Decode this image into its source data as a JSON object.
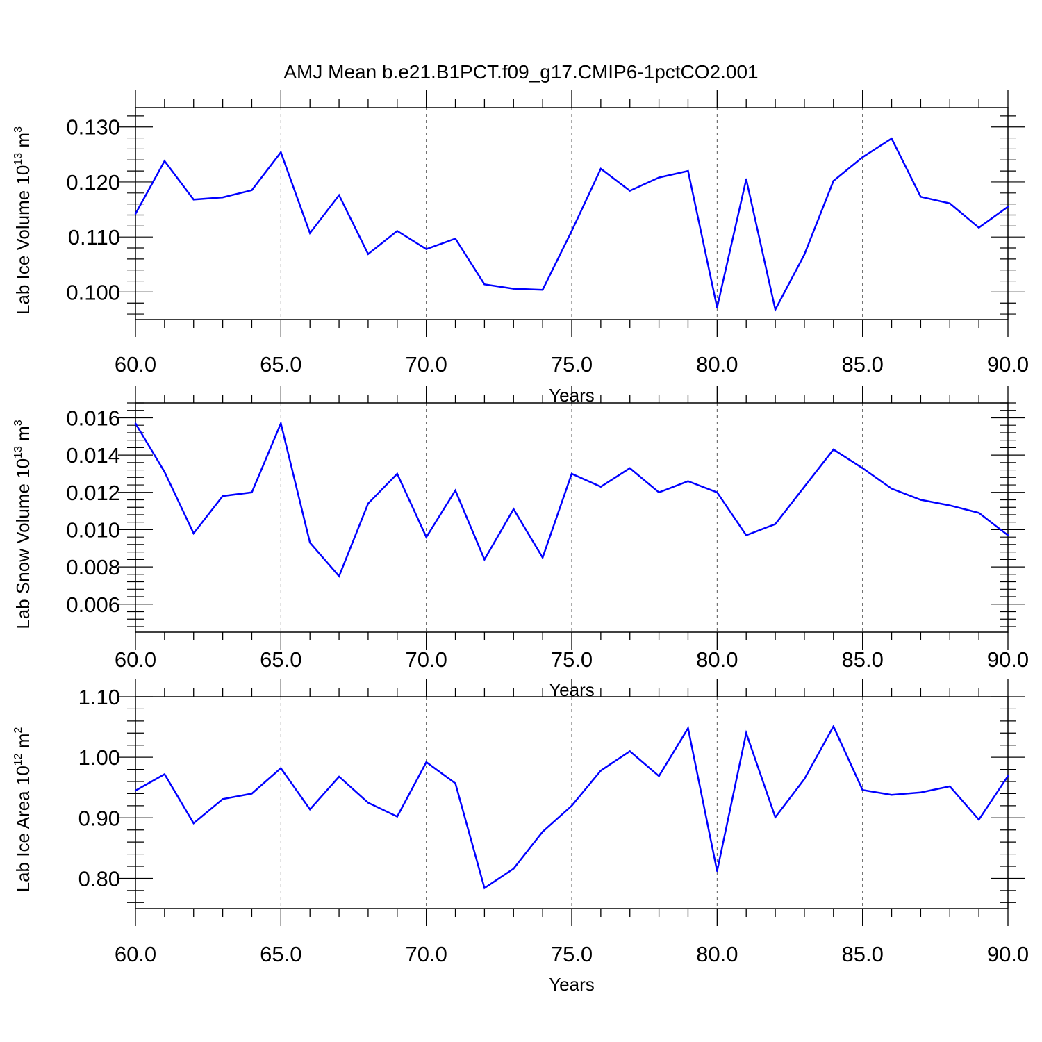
{
  "title": "AMJ Mean b.e21.B1PCT.f09_g17.CMIP6-1pctCO2.001",
  "chart_data": [
    {
      "type": "line",
      "xlabel": "Years",
      "ylabel_text": "Lab Ice Volume 10",
      "ylabel_exp": "13",
      "ylabel_unit": " m",
      "ylabel_unit_exp": "3",
      "xlim": [
        60,
        90
      ],
      "ylim": [
        0.095,
        0.1335
      ],
      "x_ticks": [
        60,
        65,
        70,
        75,
        80,
        85,
        90
      ],
      "x_tick_labels": [
        "60.0",
        "65.0",
        "70.0",
        "75.0",
        "80.0",
        "85.0",
        "90.0"
      ],
      "y_ticks": [
        0.1,
        0.11,
        0.12,
        0.13
      ],
      "y_tick_labels": [
        "0.100",
        "0.110",
        "0.120",
        "0.130"
      ],
      "y_minor_step": 0.002,
      "grid": "x-dashed",
      "line_color": "#0000ff",
      "x": [
        60,
        61,
        62,
        63,
        64,
        65,
        66,
        67,
        68,
        69,
        70,
        71,
        72,
        73,
        74,
        75,
        76,
        77,
        78,
        79,
        80,
        81,
        82,
        83,
        84,
        85,
        86,
        87,
        88,
        89,
        90
      ],
      "y": [
        0.1142,
        0.1238,
        0.1168,
        0.1172,
        0.1185,
        0.1254,
        0.1107,
        0.1176,
        0.1069,
        0.1111,
        0.1078,
        0.1097,
        0.1014,
        0.1006,
        0.1004,
        0.1111,
        0.1224,
        0.1184,
        0.1208,
        0.122,
        0.0972,
        0.1205,
        0.0968,
        0.1068,
        0.1202,
        0.1245,
        0.1279,
        0.1173,
        0.1161,
        0.1117,
        0.1155
      ]
    },
    {
      "type": "line",
      "xlabel": "Years",
      "ylabel_text": "Lab Snow Volume 10",
      "ylabel_exp": "13",
      "ylabel_unit": " m",
      "ylabel_unit_exp": "3",
      "xlim": [
        60,
        90
      ],
      "ylim": [
        0.0045,
        0.0168
      ],
      "x_ticks": [
        60,
        65,
        70,
        75,
        80,
        85,
        90
      ],
      "x_tick_labels": [
        "60.0",
        "65.0",
        "70.0",
        "75.0",
        "80.0",
        "85.0",
        "90.0"
      ],
      "y_ticks": [
        0.006,
        0.008,
        0.01,
        0.012,
        0.014,
        0.016
      ],
      "y_tick_labels": [
        "0.006",
        "0.008",
        "0.010",
        "0.012",
        "0.014",
        "0.016"
      ],
      "y_minor_step": 0.0004,
      "grid": "x-dashed",
      "line_color": "#0000ff",
      "x": [
        60,
        61,
        62,
        63,
        64,
        65,
        66,
        67,
        68,
        69,
        70,
        71,
        72,
        73,
        74,
        75,
        76,
        77,
        78,
        79,
        80,
        81,
        82,
        83,
        84,
        85,
        86,
        87,
        88,
        89,
        90
      ],
      "y": [
        0.0157,
        0.0131,
        0.0098,
        0.0118,
        0.012,
        0.0157,
        0.0093,
        0.0075,
        0.0114,
        0.013,
        0.0096,
        0.0121,
        0.0084,
        0.0111,
        0.0085,
        0.013,
        0.0123,
        0.0133,
        0.012,
        0.0126,
        0.012,
        0.0097,
        0.0103,
        0.0123,
        0.0143,
        0.0133,
        0.0122,
        0.0116,
        0.0113,
        0.0109,
        0.0097
      ]
    },
    {
      "type": "line",
      "xlabel": "Years",
      "ylabel_text": "Lab Ice Area 10",
      "ylabel_exp": "12",
      "ylabel_unit": " m",
      "ylabel_unit_exp": "2",
      "xlim": [
        60,
        90
      ],
      "ylim": [
        0.75,
        1.1
      ],
      "x_ticks": [
        60,
        65,
        70,
        75,
        80,
        85,
        90
      ],
      "x_tick_labels": [
        "60.0",
        "65.0",
        "70.0",
        "75.0",
        "80.0",
        "85.0",
        "90.0"
      ],
      "y_ticks": [
        0.8,
        0.9,
        1.0,
        1.1
      ],
      "y_tick_labels": [
        "0.80",
        "0.90",
        "1.00",
        "1.10"
      ],
      "y_minor_step": 0.02,
      "grid": "x-dashed",
      "line_color": "#0000ff",
      "x": [
        60,
        61,
        62,
        63,
        64,
        65,
        66,
        67,
        68,
        69,
        70,
        71,
        72,
        73,
        74,
        75,
        76,
        77,
        78,
        79,
        80,
        81,
        82,
        83,
        84,
        85,
        86,
        87,
        88,
        89,
        90
      ],
      "y": [
        0.945,
        0.972,
        0.891,
        0.931,
        0.94,
        0.982,
        0.914,
        0.968,
        0.925,
        0.902,
        0.992,
        0.957,
        0.784,
        0.816,
        0.877,
        0.92,
        0.978,
        1.01,
        0.969,
        1.048,
        0.812,
        1.04,
        0.901,
        0.964,
        1.051,
        0.946,
        0.938,
        0.942,
        0.952,
        0.897,
        0.969
      ]
    }
  ]
}
